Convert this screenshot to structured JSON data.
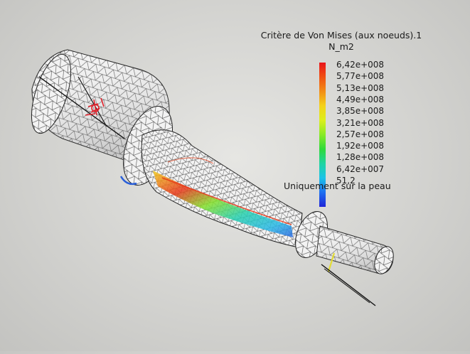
{
  "legend": {
    "title": "Critère de Von Mises (aux noeuds).1",
    "unit": "N_m2",
    "ticks": [
      "6,42e+008",
      "5,77e+008",
      "5,13e+008",
      "4,49e+008",
      "3,85e+008",
      "3,21e+008",
      "2,57e+008",
      "1,92e+008",
      "1,28e+008",
      "6,42e+007",
      "51,2"
    ],
    "note": "Uniquement sur la peau",
    "colors": [
      "#e8141a",
      "#f28d16",
      "#f4d21a",
      "#88ea26",
      "#2fd93a",
      "#1cc3e8",
      "#1f25d8"
    ]
  },
  "viewport": {
    "background": "#d3d3d0",
    "mesh_color": "#2a2a2a",
    "surface_color": "#f2f2f2"
  }
}
